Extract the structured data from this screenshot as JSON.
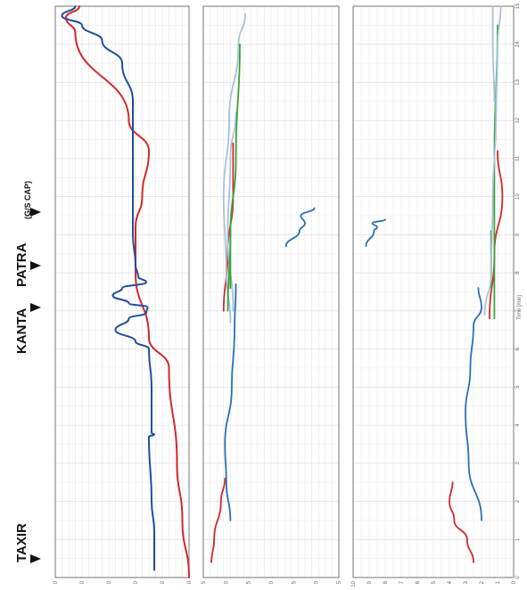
{
  "labels": {
    "taxir": "TAXIR",
    "kanta": "KANTA",
    "patra": "PATRA",
    "gs_cap": "(G/S CAP)",
    "time_axis": "Time [min]"
  },
  "colors": {
    "panel1_fast": "#d62728",
    "panel1_slow": "#1f4e9c",
    "blue": "#2a6fb5",
    "red": "#d62728",
    "green": "#3aa33a",
    "lightblue": "#a9c1dc",
    "grid": "#e2e2e2",
    "frame": "#555555"
  },
  "chart_data": [
    {
      "type": "line",
      "panel": "top",
      "xlabel": "",
      "xlim": [
        15,
        0
      ],
      "x_ticks": [
        15,
        14,
        13,
        12,
        11,
        10,
        9,
        8,
        7,
        6,
        5,
        4,
        3,
        2,
        1,
        0
      ],
      "y_ticks": [
        "0",
        "0",
        "0",
        "0",
        "0",
        "0"
      ],
      "series": [
        {
          "color": "#d62728",
          "points": [
            [
              15,
              0.18
            ],
            [
              14.7,
              0.08
            ],
            [
              14.3,
              0.15
            ],
            [
              12,
              0.55
            ],
            [
              11.2,
              0.7
            ],
            [
              10,
              0.65
            ],
            [
              9.2,
              0.6
            ],
            [
              8,
              0.6
            ],
            [
              6.3,
              0.7
            ],
            [
              5.5,
              0.85
            ],
            [
              3,
              0.91
            ],
            [
              1.5,
              0.95
            ],
            [
              0,
              1.0
            ]
          ]
        },
        {
          "color": "#1f4e9c",
          "points": [
            [
              15,
              0.15
            ],
            [
              14.75,
              0.05
            ],
            [
              14.5,
              0.2
            ],
            [
              14.1,
              0.35
            ],
            [
              13.5,
              0.5
            ],
            [
              12.5,
              0.58
            ],
            [
              11,
              0.58
            ],
            [
              9,
              0.58
            ],
            [
              8.2,
              0.6
            ],
            [
              7.9,
              0.62
            ],
            [
              7.75,
              0.68
            ],
            [
              7.6,
              0.5
            ],
            [
              7.4,
              0.43
            ],
            [
              7.2,
              0.55
            ],
            [
              7.1,
              0.69
            ],
            [
              6.95,
              0.68
            ],
            [
              6.8,
              0.55
            ],
            [
              6.5,
              0.45
            ],
            [
              6.2,
              0.6
            ],
            [
              6,
              0.7
            ],
            [
              5,
              0.72
            ],
            [
              3.8,
              0.72
            ],
            [
              3.75,
              0.74
            ],
            [
              3.7,
              0.7
            ],
            [
              2,
              0.72
            ],
            [
              1.2,
              0.74
            ],
            [
              0.2,
              0.74
            ]
          ]
        }
      ]
    },
    {
      "type": "line",
      "panel": "middle",
      "xlabel": "",
      "xlim": [
        15,
        0
      ],
      "x_ticks": [
        15,
        14,
        13,
        12,
        11,
        10,
        9,
        8,
        7,
        6,
        5,
        4,
        3,
        2,
        1,
        0
      ],
      "y_ticks": [
        "5",
        "0",
        "5",
        "0",
        "5",
        "0",
        "5"
      ],
      "series": [
        {
          "color": "#d62728",
          "points": [
            [
              0.4,
              0.06
            ],
            [
              1,
              0.08
            ],
            [
              2,
              0.13
            ],
            [
              2.6,
              0.16
            ]
          ]
        },
        {
          "color": "#2a6fb5",
          "points": [
            [
              1.5,
              0.2
            ],
            [
              2.5,
              0.17
            ],
            [
              3.5,
              0.16
            ],
            [
              5,
              0.21
            ],
            [
              6.5,
              0.23
            ],
            [
              7.7,
              0.24
            ]
          ]
        },
        {
          "color": "#d62728",
          "points": [
            [
              7,
              0.15
            ],
            [
              8.5,
              0.18
            ],
            [
              10,
              0.22
            ],
            [
              11.4,
              0.22
            ]
          ]
        },
        {
          "color": "#a9c1dc",
          "points": [
            [
              6.7,
              0.2
            ],
            [
              8,
              0.17
            ],
            [
              10,
              0.15
            ],
            [
              12,
              0.19
            ],
            [
              14,
              0.26
            ],
            [
              14.8,
              0.31
            ]
          ]
        },
        {
          "color": "#a9c1dc",
          "points": [
            [
              7,
              0.22
            ],
            [
              9,
              0.18
            ],
            [
              11,
              0.2
            ],
            [
              12.2,
              0.24
            ]
          ]
        },
        {
          "color": "#3aa33a",
          "points": [
            [
              7,
              0.18
            ],
            [
              9,
              0.2
            ],
            [
              11,
              0.24
            ],
            [
              14,
              0.27
            ]
          ]
        },
        {
          "color": "#3aa33a",
          "points": [
            [
              7.6,
              0.2
            ],
            [
              9.1,
              0.2
            ]
          ]
        },
        {
          "color": "#2a6fb5",
          "points": [
            [
              8.7,
              0.61
            ],
            [
              9.1,
              0.71
            ],
            [
              9.3,
              0.75
            ],
            [
              9.5,
              0.72
            ],
            [
              9.7,
              0.82
            ]
          ]
        }
      ]
    },
    {
      "type": "line",
      "panel": "bottom",
      "xlabel": "Time [min]",
      "xlim": [
        15,
        0
      ],
      "x_ticks": [
        15,
        14,
        13,
        12,
        11,
        10,
        9,
        8,
        7,
        6,
        5,
        4,
        3,
        2,
        1,
        0
      ],
      "y_ticks": [
        "10",
        "9",
        "8",
        "7",
        "6",
        "5",
        "4",
        "3",
        "2",
        "1",
        "0"
      ],
      "series": [
        {
          "color": "#d62728",
          "points": [
            [
              0.4,
              0.75
            ],
            [
              1,
              0.71
            ],
            [
              1.5,
              0.63
            ],
            [
              2,
              0.6
            ],
            [
              2.5,
              0.62
            ]
          ]
        },
        {
          "color": "#2a6fb5",
          "points": [
            [
              1.5,
              0.8
            ],
            [
              3,
              0.72
            ],
            [
              4.3,
              0.7
            ],
            [
              5.5,
              0.73
            ],
            [
              6.6,
              0.75
            ],
            [
              7.1,
              0.8
            ],
            [
              7.6,
              0.78
            ]
          ]
        },
        {
          "color": "#d62728",
          "points": [
            [
              6.8,
              0.85
            ],
            [
              8.5,
              0.88
            ],
            [
              10,
              0.93
            ],
            [
              11.2,
              0.9
            ]
          ]
        },
        {
          "color": "#3aa33a",
          "points": [
            [
              6.8,
              0.88
            ],
            [
              9,
              0.88
            ],
            [
              11,
              0.88
            ],
            [
              14.5,
              0.9
            ]
          ]
        },
        {
          "color": "#3aa33a",
          "points": [
            [
              7.6,
              0.86
            ],
            [
              9.1,
              0.86
            ]
          ]
        },
        {
          "color": "#a9c1dc",
          "points": [
            [
              6.9,
              0.82
            ],
            [
              8,
              0.86
            ],
            [
              10,
              0.87
            ],
            [
              12,
              0.89
            ],
            [
              14,
              0.9
            ],
            [
              15,
              0.92
            ]
          ]
        },
        {
          "color": "#a9c1dc",
          "points": [
            [
              12.5,
              0.88
            ],
            [
              14,
              0.87
            ],
            [
              15,
              0.87
            ]
          ]
        },
        {
          "color": "#2a6fb5",
          "points": [
            [
              8.7,
              0.08
            ],
            [
              9.1,
              0.13
            ],
            [
              9.2,
              0.15
            ],
            [
              9.3,
              0.12
            ],
            [
              9.4,
              0.2
            ]
          ]
        }
      ]
    }
  ]
}
